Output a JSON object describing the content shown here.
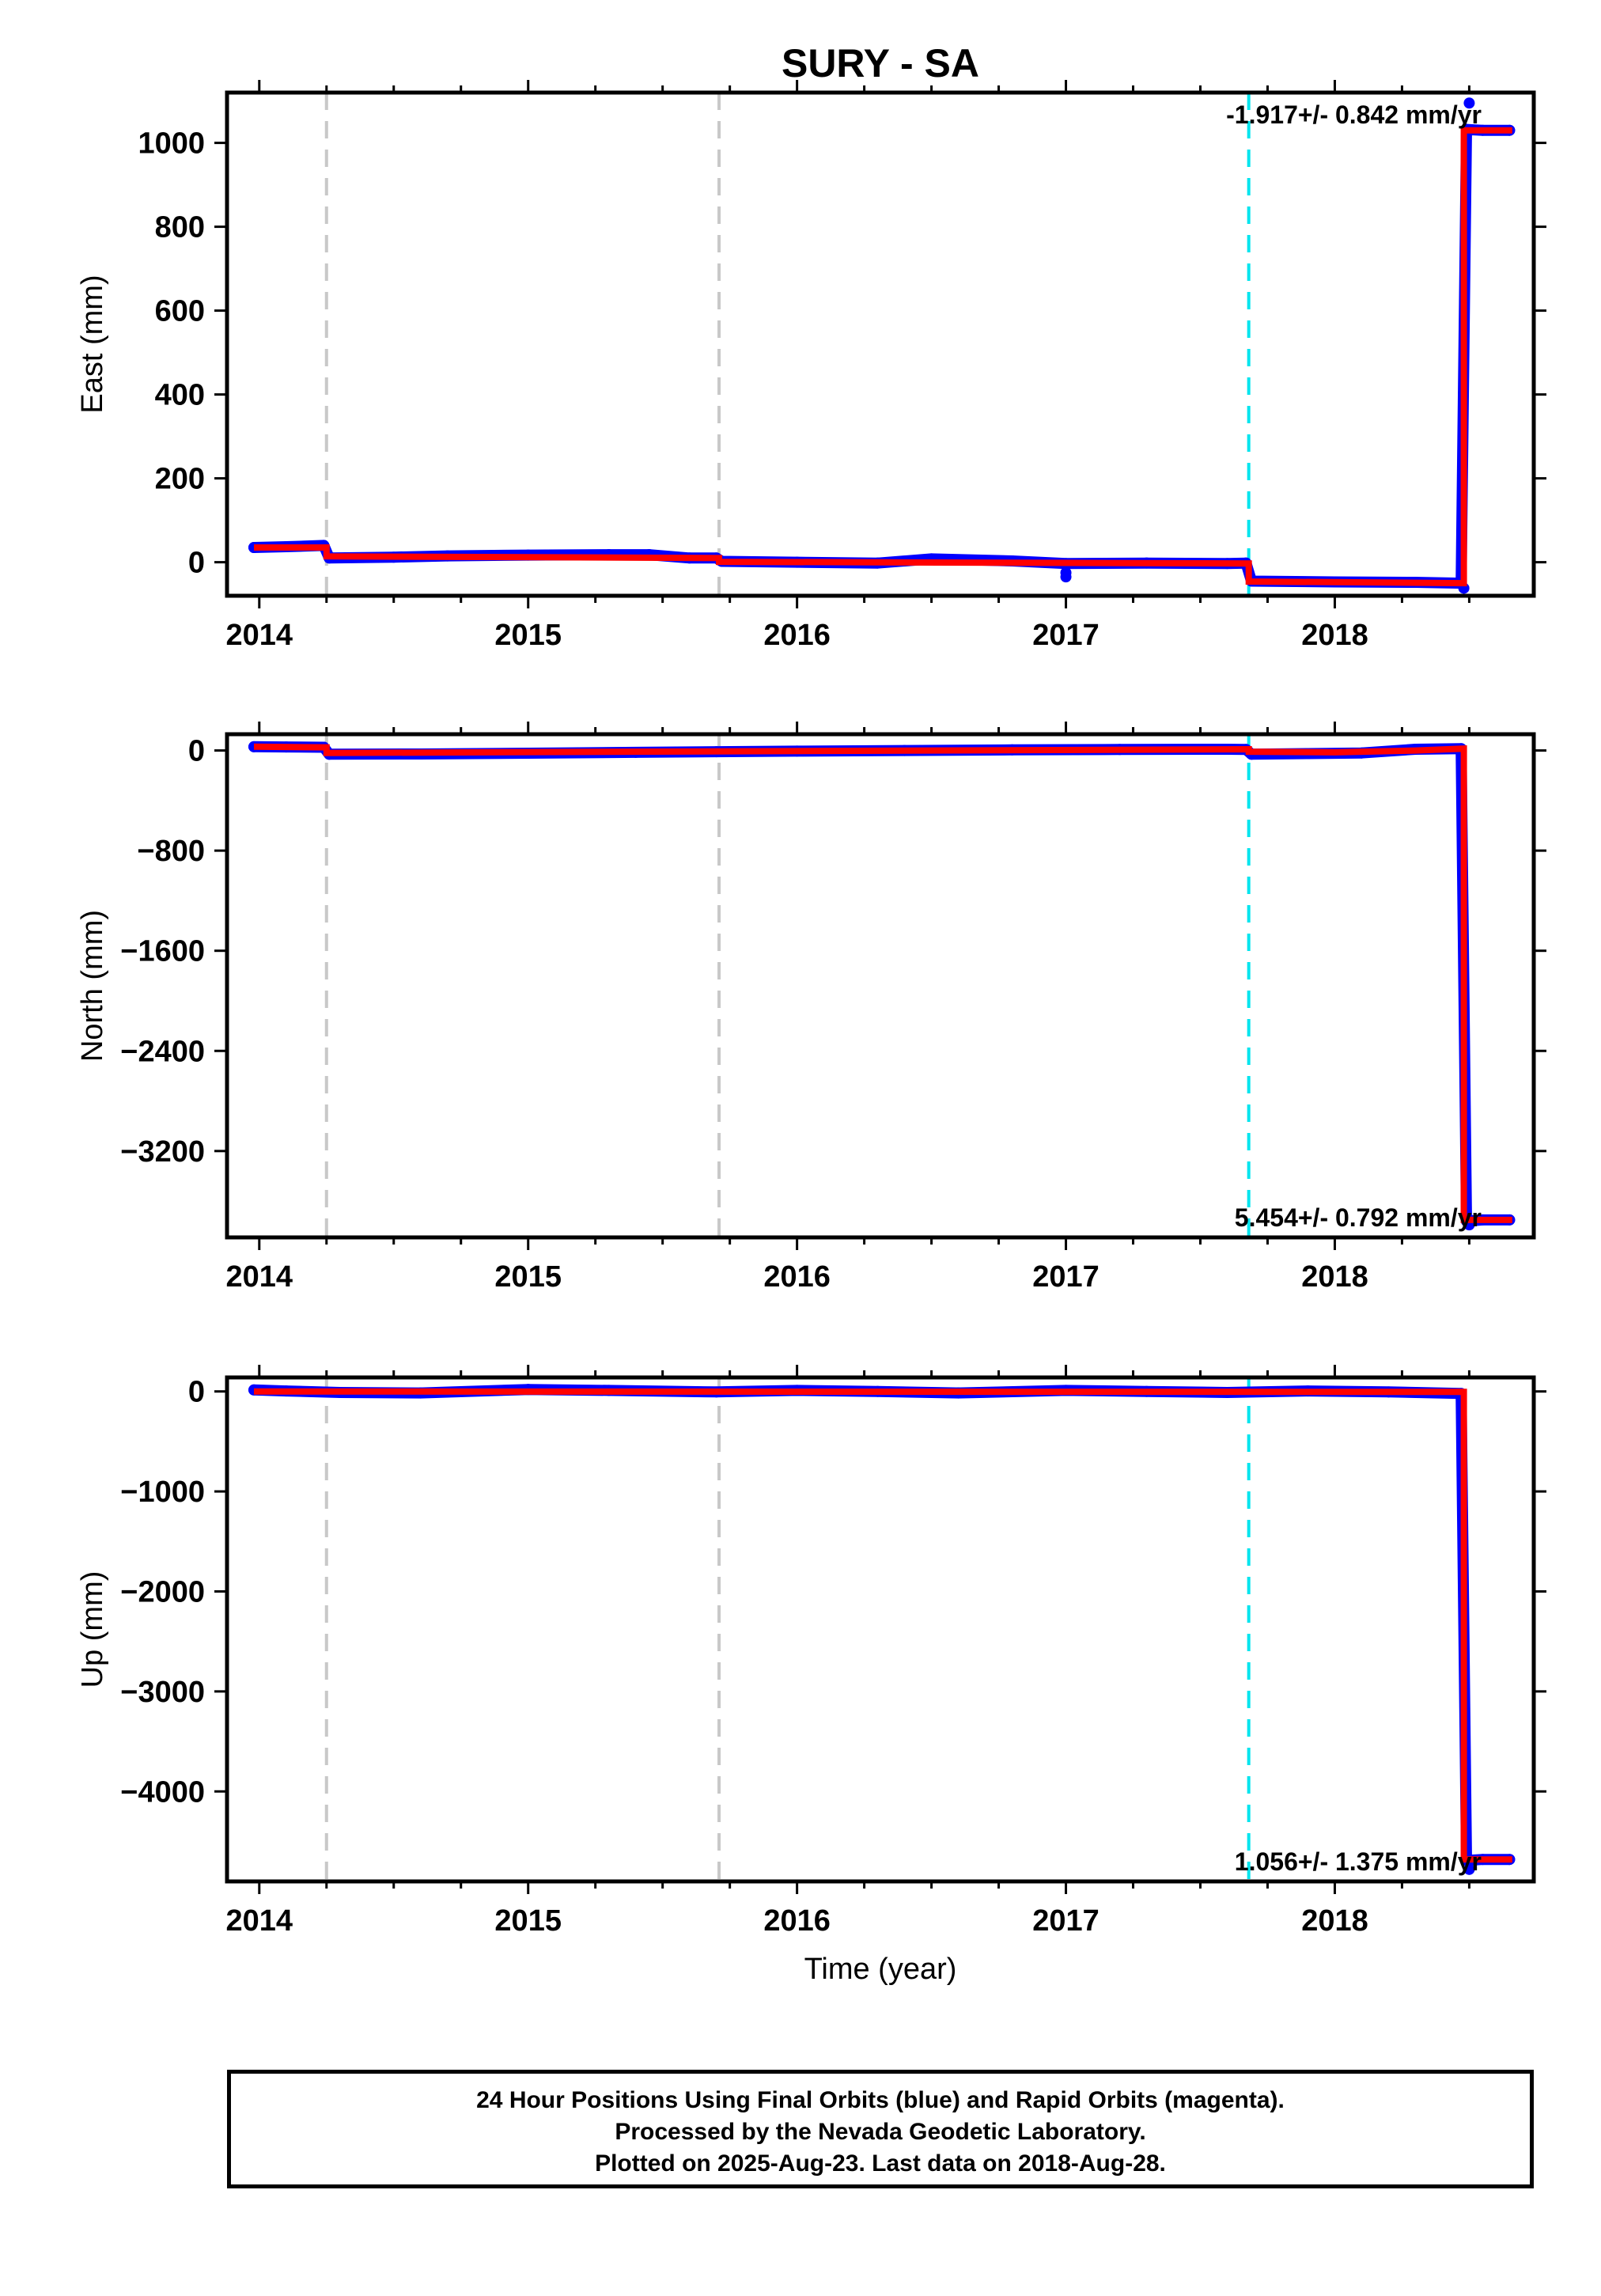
{
  "title": "SURY - SA",
  "xlabel": "Time (year)",
  "footer": {
    "line1": "24 Hour Positions Using Final Orbits (blue) and Rapid Orbits (magenta).",
    "line2": "Processed by the Nevada Geodetic Laboratory.",
    "line3": "Plotted on 2025-Aug-23. Last data on 2018-Aug-28."
  },
  "colors": {
    "final_orbits": "#0000ff",
    "rapid_orbits": "#ff00ff",
    "model": "#ff0000",
    "equipment_change": "#c8c8c8",
    "earthquake": "#00e5ee"
  },
  "chart_data": [
    {
      "type": "scatter",
      "panel": "east",
      "ylabel": "East (mm)",
      "xlim": [
        2013.88,
        2018.74
      ],
      "ylim": [
        -80,
        1120
      ],
      "xticks": [
        2014,
        2015,
        2016,
        2017,
        2018
      ],
      "yticks": [
        0,
        200,
        400,
        600,
        800,
        1000
      ],
      "rate_label": "-1.917+/- 0.842 mm/yr",
      "rate_position": "top-right",
      "equipment_change_lines": [
        2014.25,
        2015.71
      ],
      "earthquake_lines": [
        2017.68
      ],
      "series": [
        {
          "role": "observations",
          "x": [
            2013.98,
            2014.1,
            2014.24,
            2014.26,
            2014.5,
            2014.7,
            2015.0,
            2015.3,
            2015.45,
            2015.6,
            2015.7,
            2015.72,
            2016.0,
            2016.3,
            2016.5,
            2016.8,
            2017.0,
            2017.3,
            2017.6,
            2017.67,
            2017.69,
            2018.0,
            2018.3,
            2018.47,
            2018.49,
            2018.55,
            2018.65
          ],
          "y": [
            35,
            37,
            40,
            10,
            12,
            15,
            17,
            18,
            18,
            10,
            10,
            2,
            0,
            -2,
            8,
            3,
            -3,
            -2,
            -3,
            -2,
            -45,
            -47,
            -48,
            -50,
            1032,
            1030,
            1030
          ]
        },
        {
          "role": "model",
          "x": [
            2013.98,
            2014.25,
            2014.25,
            2015.71,
            2015.71,
            2017.68,
            2017.68,
            2018.48,
            2018.48,
            2018.66
          ],
          "y": [
            35,
            35,
            14,
            10,
            1,
            -3,
            -46,
            -50,
            1030,
            1030
          ]
        },
        {
          "role": "outliers",
          "x": [
            2017.0,
            2017.0,
            2018.5,
            2018.48
          ],
          "y": [
            -25,
            -35,
            1095,
            -62
          ]
        }
      ]
    },
    {
      "type": "scatter",
      "panel": "north",
      "ylabel": "North (mm)",
      "xlim": [
        2013.88,
        2018.74
      ],
      "ylim": [
        -3890,
        130
      ],
      "xticks": [
        2014,
        2015,
        2016,
        2017,
        2018
      ],
      "yticks": [
        0,
        -800,
        -1600,
        -2400,
        -3200
      ],
      "rate_label": "5.454+/- 0.792 mm/yr",
      "rate_position": "bottom-right",
      "equipment_change_lines": [
        2014.25,
        2015.71
      ],
      "earthquake_lines": [
        2017.68
      ],
      "series": [
        {
          "role": "observations",
          "x": [
            2013.98,
            2014.1,
            2014.24,
            2014.26,
            2014.6,
            2015.0,
            2015.4,
            2015.7,
            2016.0,
            2016.4,
            2016.8,
            2017.2,
            2017.6,
            2017.67,
            2017.69,
            2017.9,
            2018.1,
            2018.3,
            2018.47,
            2018.49,
            2018.55,
            2018.65
          ],
          "y": [
            30,
            28,
            26,
            -30,
            -28,
            -22,
            -15,
            -10,
            -5,
            0,
            5,
            8,
            10,
            8,
            -30,
            -25,
            -20,
            10,
            15,
            -3760,
            -3750,
            -3750
          ]
        },
        {
          "role": "model",
          "x": [
            2013.98,
            2014.25,
            2014.25,
            2017.68,
            2017.68,
            2018.0,
            2018.3,
            2018.48,
            2018.48,
            2018.66
          ],
          "y": [
            30,
            25,
            -20,
            10,
            -10,
            -15,
            0,
            15,
            -3750,
            -3750
          ]
        },
        {
          "role": "outliers",
          "x": [
            2018.5
          ],
          "y": [
            -3790
          ]
        }
      ]
    },
    {
      "type": "scatter",
      "panel": "up",
      "ylabel": "Up (mm)",
      "xlim": [
        2013.88,
        2018.74
      ],
      "ylim": [
        -4900,
        140
      ],
      "xticks": [
        2014,
        2015,
        2016,
        2017,
        2018
      ],
      "yticks": [
        0,
        -1000,
        -2000,
        -3000,
        -4000
      ],
      "rate_label": "1.056+/- 1.375 mm/yr",
      "rate_position": "bottom-right",
      "equipment_change_lines": [
        2014.25,
        2015.71
      ],
      "earthquake_lines": [
        2017.68
      ],
      "series": [
        {
          "role": "observations",
          "x": [
            2013.98,
            2014.1,
            2014.3,
            2014.6,
            2015.0,
            2015.3,
            2015.7,
            2016.0,
            2016.3,
            2016.6,
            2017.0,
            2017.3,
            2017.6,
            2017.9,
            2018.2,
            2018.47,
            2018.49,
            2018.55,
            2018.65
          ],
          "y": [
            15,
            5,
            -10,
            -15,
            20,
            10,
            -5,
            10,
            0,
            -15,
            10,
            0,
            -10,
            5,
            -5,
            -20,
            -4690,
            -4680,
            -4680
          ]
        },
        {
          "role": "model",
          "x": [
            2013.98,
            2018.48,
            2018.48,
            2018.66
          ],
          "y": [
            0,
            -5,
            -4680,
            -4680
          ]
        },
        {
          "role": "outliers",
          "x": [
            2018.5
          ],
          "y": [
            -4780
          ]
        }
      ]
    }
  ]
}
